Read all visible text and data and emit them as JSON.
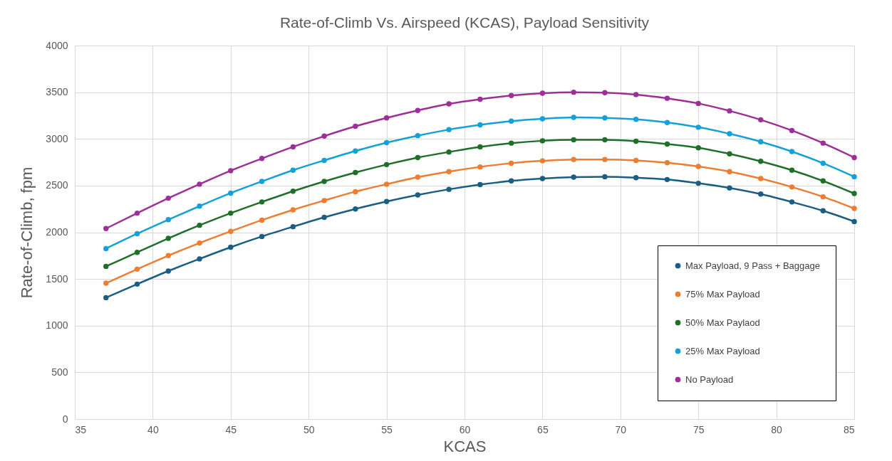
{
  "chart_data": {
    "type": "line",
    "title": "Rate-of-Climb Vs. Airspeed (KCAS), Payload Sensitivity",
    "xlabel": "KCAS",
    "ylabel": "Rate-of-Climb, fpm",
    "x": [
      37,
      39,
      41,
      43,
      45,
      47,
      49,
      51,
      53,
      55,
      57,
      59,
      61,
      63,
      65,
      67,
      69,
      71,
      73,
      75,
      77,
      79,
      81,
      83,
      85
    ],
    "series": [
      {
        "name": "Max Payload, 9 Pass + Baggage",
        "color": "#1a5e85",
        "values": [
          1300,
          1445,
          1585,
          1715,
          1840,
          1955,
          2060,
          2160,
          2250,
          2330,
          2400,
          2460,
          2510,
          2550,
          2575,
          2590,
          2595,
          2585,
          2565,
          2525,
          2475,
          2410,
          2325,
          2230,
          2115
        ]
      },
      {
        "name": "75% Max Payload",
        "color": "#ed7d31",
        "values": [
          1455,
          1605,
          1750,
          1885,
          2010,
          2130,
          2240,
          2340,
          2435,
          2515,
          2590,
          2650,
          2700,
          2740,
          2765,
          2780,
          2780,
          2770,
          2745,
          2705,
          2650,
          2575,
          2485,
          2380,
          2255
        ]
      },
      {
        "name": "50% Max Paylaod",
        "color": "#1e7029",
        "values": [
          1635,
          1785,
          1935,
          2075,
          2205,
          2325,
          2440,
          2545,
          2640,
          2725,
          2800,
          2860,
          2915,
          2955,
          2980,
          2990,
          2990,
          2975,
          2945,
          2905,
          2840,
          2760,
          2665,
          2550,
          2415
        ]
      },
      {
        "name": "25% Max Payload",
        "color": "#14a0d8",
        "values": [
          1825,
          1985,
          2135,
          2280,
          2420,
          2545,
          2665,
          2770,
          2870,
          2960,
          3035,
          3100,
          3150,
          3190,
          3215,
          3230,
          3225,
          3210,
          3175,
          3125,
          3055,
          2970,
          2865,
          2740,
          2595
        ]
      },
      {
        "name": "No Payload",
        "color": "#9e2f99",
        "values": [
          2040,
          2205,
          2365,
          2515,
          2660,
          2790,
          2915,
          3030,
          3135,
          3225,
          3305,
          3375,
          3425,
          3465,
          3490,
          3500,
          3495,
          3475,
          3435,
          3380,
          3300,
          3205,
          3090,
          2955,
          2800
        ]
      }
    ],
    "xlim": [
      35,
      85
    ],
    "xticks": [
      35,
      40,
      45,
      50,
      55,
      60,
      65,
      70,
      75,
      80,
      85
    ],
    "ylim": [
      0,
      4000
    ],
    "yticks": [
      0,
      500,
      1000,
      1500,
      2000,
      2500,
      3000,
      3500,
      4000
    ],
    "grid": true,
    "legend": "bottom right",
    "marker": "circle",
    "line_style": "solid"
  }
}
